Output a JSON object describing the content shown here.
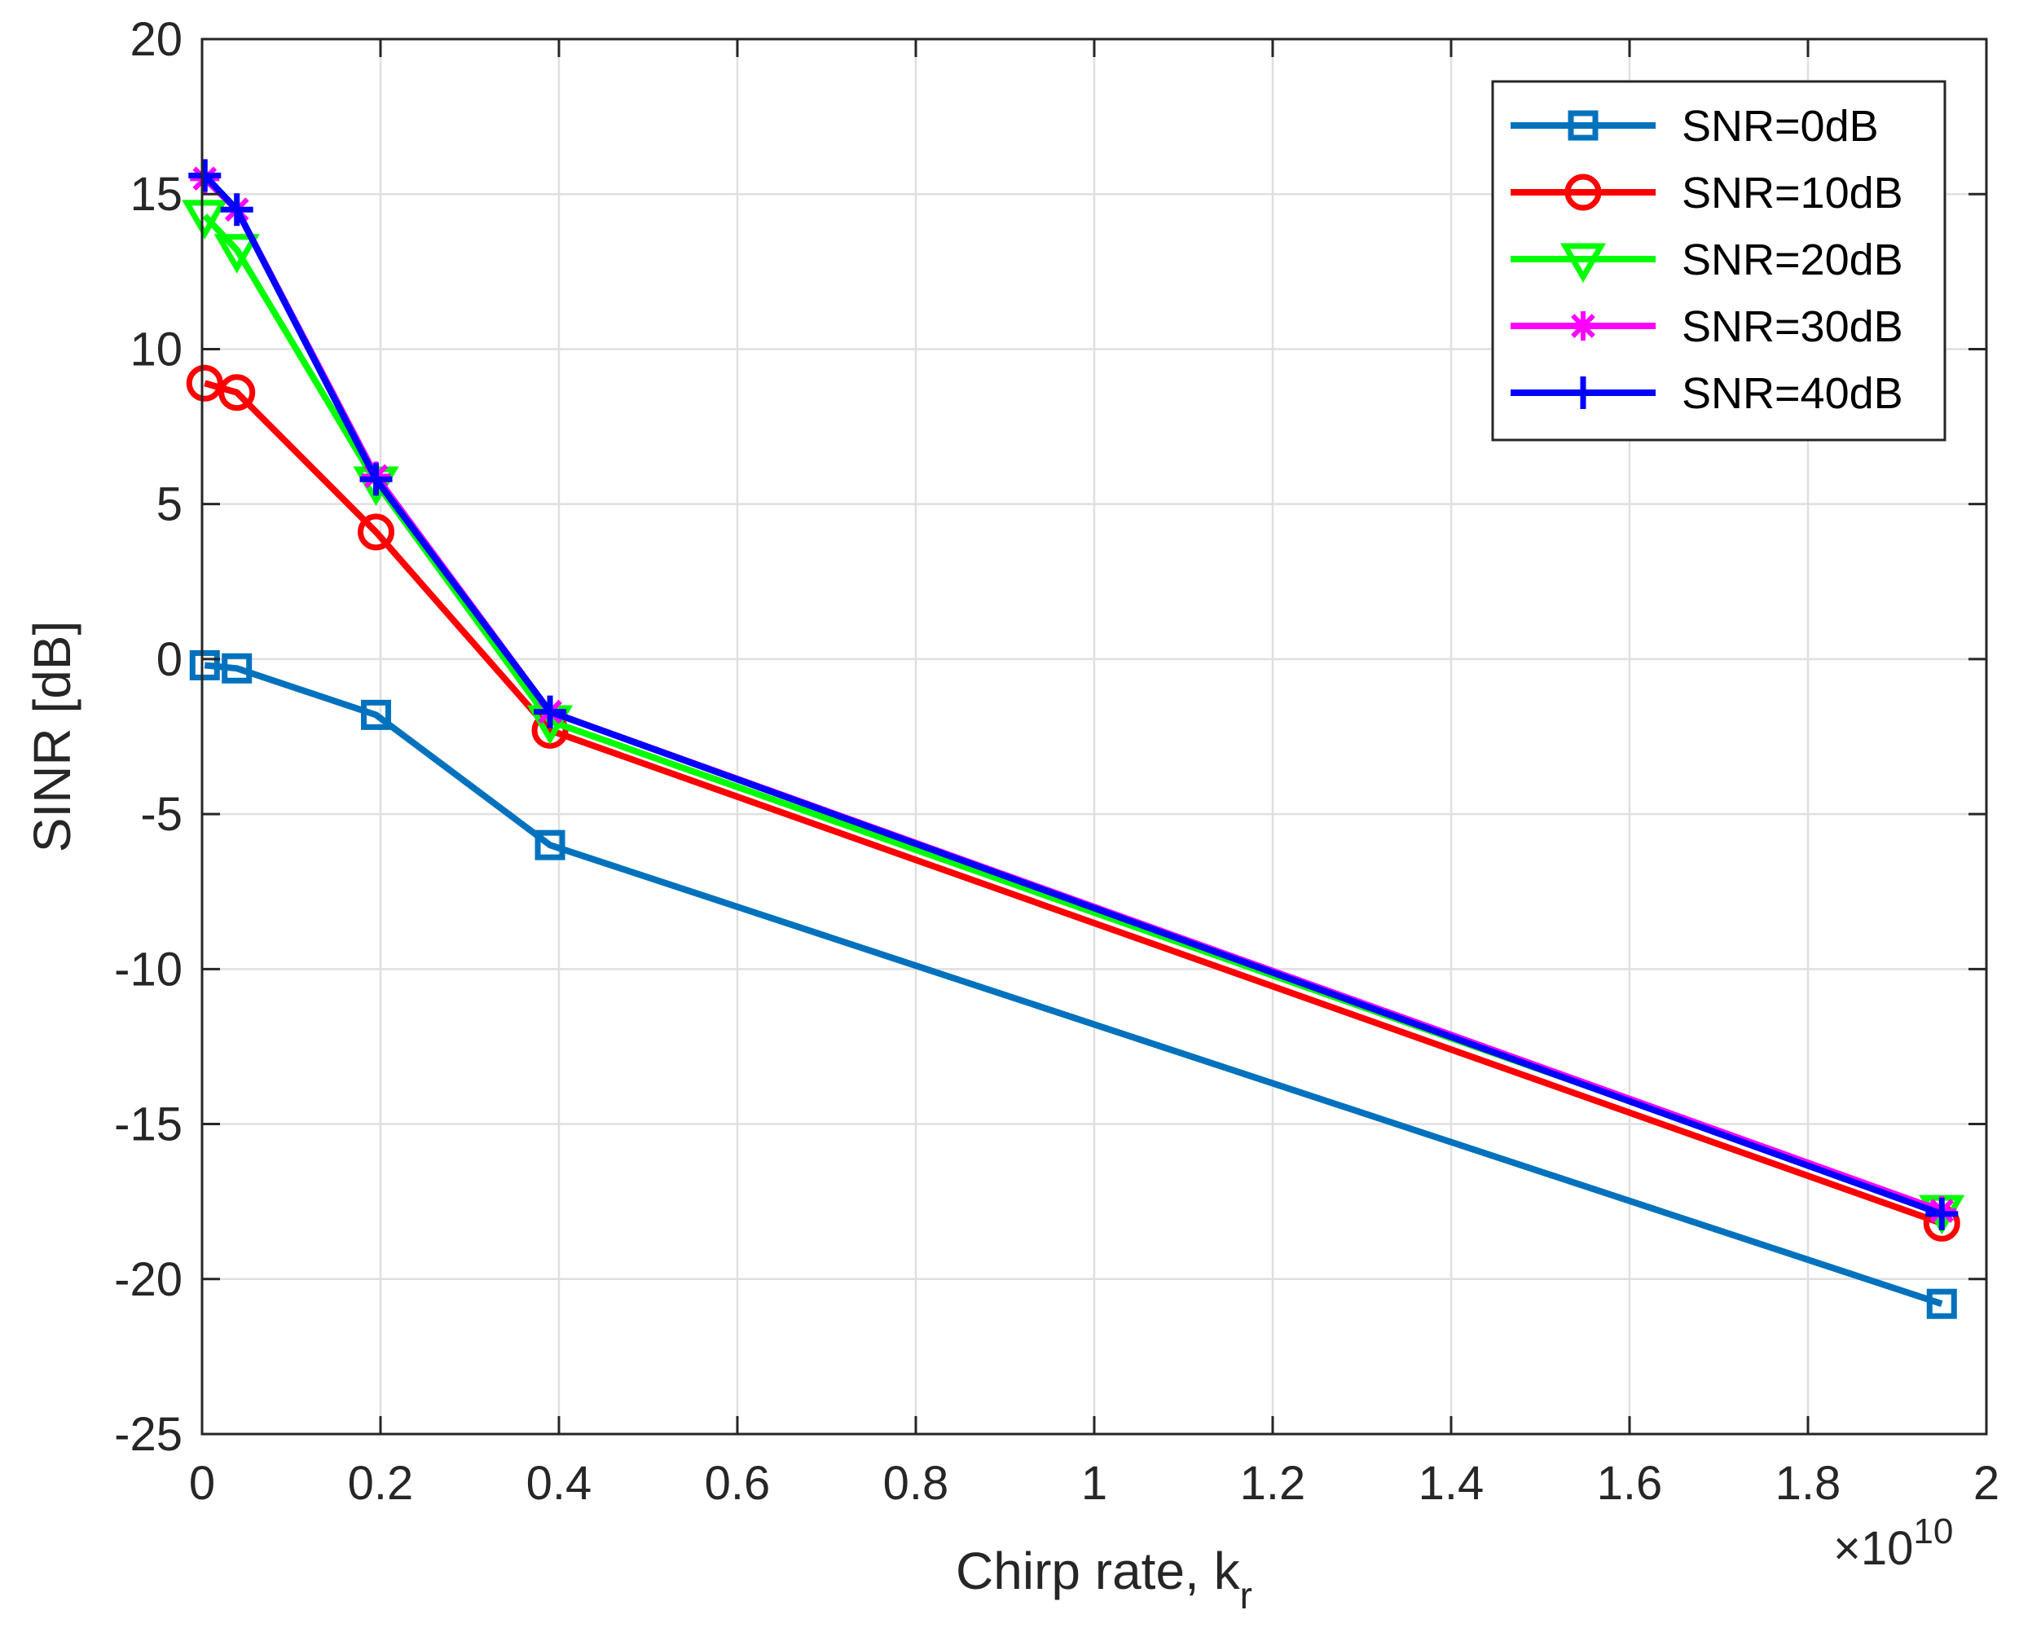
{
  "chart_data": {
    "type": "line",
    "title": "",
    "xlabel_main": "Chirp rate, k",
    "xlabel_sub": "r",
    "ylabel": "SINR [dB]",
    "x_exponent_base": "×10",
    "x_exponent_power": "10",
    "xlim": [
      0,
      2
    ],
    "ylim": [
      -25,
      20
    ],
    "xticks": [
      0,
      0.2,
      0.4,
      0.6,
      0.8,
      1,
      1.2,
      1.4,
      1.6,
      1.8,
      2
    ],
    "xtick_labels": [
      "0",
      "0.2",
      "0.4",
      "0.6",
      "0.8",
      "1",
      "1.2",
      "1.4",
      "1.6",
      "1.8",
      "2"
    ],
    "yticks": [
      -25,
      -20,
      -15,
      -10,
      -5,
      0,
      5,
      10,
      15,
      20
    ],
    "ytick_labels": [
      "-25",
      "-20",
      "-15",
      "-10",
      "-5",
      "0",
      "5",
      "10",
      "15",
      "20"
    ],
    "grid": true,
    "legend_position": "top-right",
    "x": [
      0.003,
      0.039,
      0.195,
      0.39,
      1.95
    ],
    "series": [
      {
        "name": "SNR=0dB",
        "color": "#0072BD",
        "marker": "square",
        "values": [
          -0.2,
          -0.3,
          -1.8,
          -6.0,
          -20.8
        ]
      },
      {
        "name": "SNR=10dB",
        "color": "#FF0000",
        "marker": "circle",
        "values": [
          8.9,
          8.6,
          4.1,
          -2.3,
          -18.2
        ]
      },
      {
        "name": "SNR=20dB",
        "color": "#00FF00",
        "marker": "triangle-down",
        "values": [
          14.3,
          13.2,
          5.7,
          -2.0,
          -17.8
        ]
      },
      {
        "name": "SNR=30dB",
        "color": "#FF00FF",
        "marker": "asterisk",
        "values": [
          15.5,
          14.5,
          5.9,
          -1.7,
          -17.8
        ]
      },
      {
        "name": "SNR=40dB",
        "color": "#0000FF",
        "marker": "plus",
        "values": [
          15.6,
          14.5,
          5.8,
          -1.7,
          -17.9
        ]
      }
    ]
  }
}
